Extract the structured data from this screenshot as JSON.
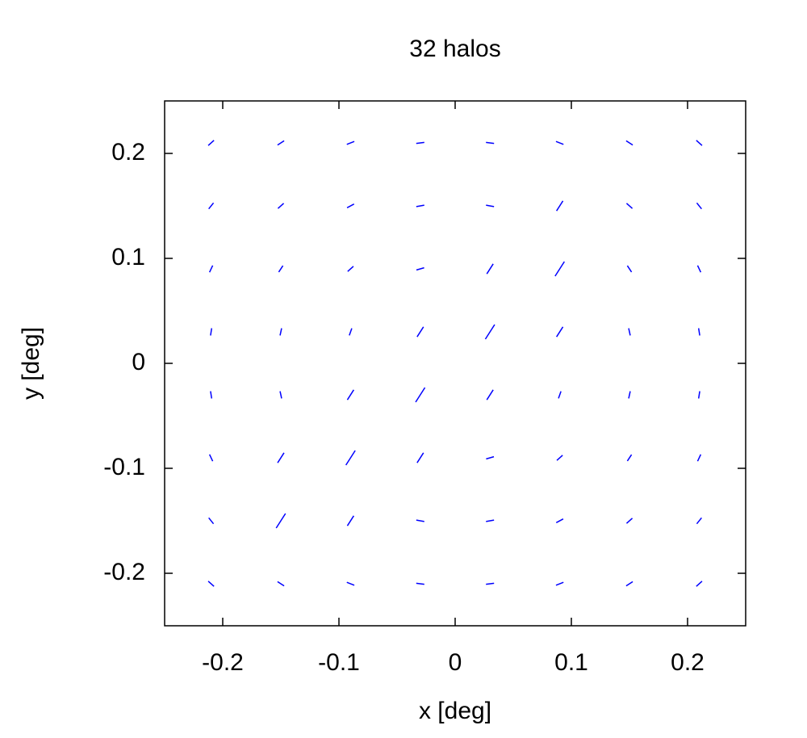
{
  "chart_data": {
    "type": "quiver",
    "title": "32 halos",
    "xlabel": "x [deg]",
    "ylabel": "y [deg]",
    "color": "#0000ff",
    "xlim": [
      -0.25,
      0.25
    ],
    "ylim": [
      -0.25,
      0.25
    ],
    "xticks": [
      -0.2,
      -0.1,
      0,
      0.1,
      0.2
    ],
    "yticks": [
      -0.2,
      -0.1,
      0,
      0.1,
      0.2
    ],
    "x": [
      -0.21,
      -0.15,
      -0.09,
      -0.03,
      0.03,
      0.09,
      0.15,
      0.21,
      -0.21,
      -0.15,
      -0.09,
      -0.03,
      0.03,
      0.09,
      0.15,
      0.21,
      -0.21,
      -0.15,
      -0.09,
      -0.03,
      0.03,
      0.09,
      0.15,
      0.21,
      -0.21,
      -0.15,
      -0.09,
      -0.03,
      0.03,
      0.09,
      0.15,
      0.21,
      -0.21,
      -0.15,
      -0.09,
      -0.03,
      0.03,
      0.09,
      0.15,
      0.21,
      -0.21,
      -0.15,
      -0.09,
      -0.03,
      0.03,
      0.09,
      0.15,
      0.21,
      -0.21,
      -0.15,
      -0.09,
      -0.03,
      0.03,
      0.09,
      0.15,
      0.21,
      -0.21,
      -0.15,
      -0.09,
      -0.03,
      0.03,
      0.09,
      0.15,
      0.21
    ],
    "y": [
      -0.21,
      -0.21,
      -0.21,
      -0.21,
      -0.21,
      -0.21,
      -0.21,
      -0.21,
      -0.15,
      -0.15,
      -0.15,
      -0.15,
      -0.15,
      -0.15,
      -0.15,
      -0.15,
      -0.09,
      -0.09,
      -0.09,
      -0.09,
      -0.09,
      -0.09,
      -0.09,
      -0.09,
      -0.03,
      -0.03,
      -0.03,
      -0.03,
      -0.03,
      -0.03,
      -0.03,
      -0.03,
      0.03,
      0.03,
      0.03,
      0.03,
      0.03,
      0.03,
      0.03,
      0.03,
      0.09,
      0.09,
      0.09,
      0.09,
      0.09,
      0.09,
      0.09,
      0.09,
      0.15,
      0.15,
      0.15,
      0.15,
      0.15,
      0.15,
      0.15,
      0.15,
      0.21,
      0.21,
      0.21,
      0.21,
      0.21,
      0.21,
      0.21,
      0.21
    ],
    "angle": [
      135,
      144,
      157,
      172,
      8,
      23,
      36,
      45,
      126,
      60,
      60,
      169,
      11,
      31,
      45,
      54,
      113,
      60,
      60,
      60,
      18,
      45,
      59,
      67,
      98,
      101,
      60,
      60,
      60,
      72,
      79,
      82,
      82,
      79,
      72,
      60,
      60,
      60,
      101,
      98,
      67,
      59,
      45,
      18,
      60,
      60,
      121,
      113,
      54,
      45,
      31,
      11,
      169,
      60,
      135,
      126,
      45,
      36,
      23,
      8,
      172,
      157,
      144,
      135
    ],
    "length": [
      0.007,
      0.007,
      0.007,
      0.007,
      0.007,
      0.007,
      0.007,
      0.007,
      0.007,
      0.016,
      0.011,
      0.007,
      0.007,
      0.007,
      0.007,
      0.007,
      0.007,
      0.011,
      0.016,
      0.011,
      0.007,
      0.007,
      0.007,
      0.007,
      0.007,
      0.007,
      0.011,
      0.016,
      0.011,
      0.007,
      0.007,
      0.007,
      0.007,
      0.007,
      0.007,
      0.011,
      0.016,
      0.011,
      0.007,
      0.007,
      0.007,
      0.007,
      0.007,
      0.007,
      0.011,
      0.016,
      0.007,
      0.007,
      0.007,
      0.007,
      0.007,
      0.007,
      0.007,
      0.011,
      0.007,
      0.007,
      0.007,
      0.007,
      0.007,
      0.007,
      0.007,
      0.007,
      0.007,
      0.007
    ]
  }
}
